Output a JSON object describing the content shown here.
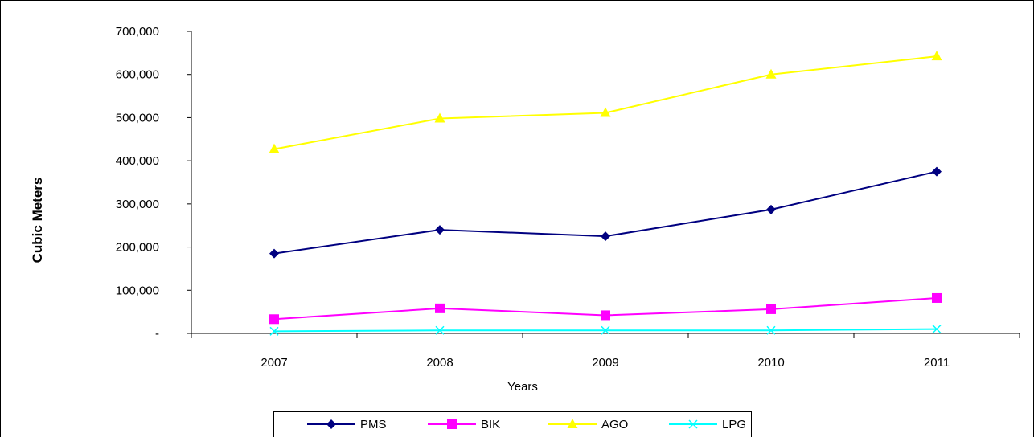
{
  "chart_data": {
    "type": "line",
    "title": "",
    "xlabel": "Years",
    "ylabel": "Cubic Meters",
    "categories": [
      "2007",
      "2008",
      "2009",
      "2010",
      "2011"
    ],
    "ylim": [
      0,
      700000
    ],
    "yticks": [
      0,
      100000,
      200000,
      300000,
      400000,
      500000,
      600000,
      700000
    ],
    "ytick_labels": [
      "-",
      "100,000",
      "200,000",
      "300,000",
      "400,000",
      "500,000",
      "600,000",
      "700,000"
    ],
    "grid": false,
    "legend_position": "bottom",
    "series": [
      {
        "name": "PMS",
        "values": [
          185000,
          240000,
          225000,
          287000,
          375000
        ],
        "color": "#000080",
        "marker": "diamond"
      },
      {
        "name": "BIK",
        "values": [
          33000,
          58000,
          42000,
          56000,
          82000
        ],
        "color": "#FF00FF",
        "marker": "square"
      },
      {
        "name": "AGO",
        "values": [
          427000,
          498000,
          511000,
          600000,
          642000
        ],
        "color": "#FFFF00",
        "marker": "triangle"
      },
      {
        "name": "LPG",
        "values": [
          5000,
          7000,
          7000,
          7000,
          10000
        ],
        "color": "#00FFFF",
        "marker": "x"
      }
    ]
  }
}
